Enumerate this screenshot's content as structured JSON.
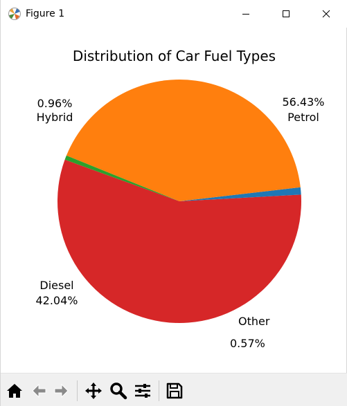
{
  "window": {
    "title": "Figure 1",
    "icon": "matplotlib-icon"
  },
  "titlebar_buttons": [
    {
      "name": "minimize",
      "icon": "minimize-icon"
    },
    {
      "name": "maximize",
      "icon": "maximize-icon"
    },
    {
      "name": "close",
      "icon": "close-icon"
    }
  ],
  "toolbar": [
    {
      "name": "home",
      "icon": "home-icon"
    },
    {
      "name": "back",
      "icon": "back-arrow-icon"
    },
    {
      "name": "forward",
      "icon": "forward-arrow-icon"
    },
    {
      "name": "pan",
      "icon": "move-icon"
    },
    {
      "name": "zoom",
      "icon": "magnifier-icon"
    },
    {
      "name": "configure-subplots",
      "icon": "sliders-icon"
    },
    {
      "name": "save",
      "icon": "floppy-disk-icon"
    }
  ],
  "chart_data": {
    "type": "pie",
    "title": "Distribution of Car Fuel Types",
    "labels": [
      "Petrol",
      "Hybrid",
      "Diesel",
      "Other"
    ],
    "values": [
      56.43,
      0.96,
      42.04,
      0.57
    ],
    "percent_labels": [
      "56.43%",
      "0.96%",
      "42.04%",
      "0.57%"
    ],
    "colors": [
      "#d62728",
      "#1f77b4",
      "#ff7f0e",
      "#2ca02c"
    ],
    "start_angle_deg": 160,
    "direction": "counterclockwise",
    "legend": "none"
  }
}
